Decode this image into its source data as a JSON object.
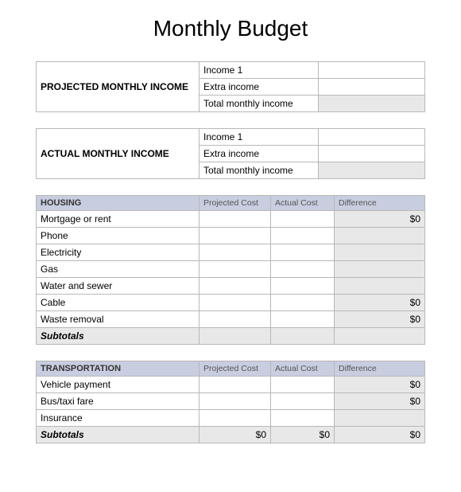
{
  "title": "Monthly Budget",
  "income_sections": [
    {
      "name": "PROJECTED MONTHLY INCOME",
      "rows": [
        {
          "label": "Income 1",
          "value": "",
          "shaded": false
        },
        {
          "label": "Extra income",
          "value": "",
          "shaded": false
        },
        {
          "label": "Total monthly income",
          "value": "",
          "shaded": true
        }
      ]
    },
    {
      "name": "ACTUAL MONTHLY INCOME",
      "rows": [
        {
          "label": "Income 1",
          "value": "",
          "shaded": false
        },
        {
          "label": "Extra income",
          "value": "",
          "shaded": false
        },
        {
          "label": "Total monthly income",
          "value": "",
          "shaded": true
        }
      ]
    }
  ],
  "col_headers": {
    "projected": "Projected Cost",
    "actual": "Actual Cost",
    "difference": "Difference"
  },
  "categories": [
    {
      "name": "HOUSING",
      "rows": [
        {
          "item": "Mortgage or rent",
          "projected": "",
          "actual": "",
          "difference": "$0"
        },
        {
          "item": "Phone",
          "projected": "",
          "actual": "",
          "difference": ""
        },
        {
          "item": "Electricity",
          "projected": "",
          "actual": "",
          "difference": ""
        },
        {
          "item": "Gas",
          "projected": "",
          "actual": "",
          "difference": ""
        },
        {
          "item": "Water and sewer",
          "projected": "",
          "actual": "",
          "difference": ""
        },
        {
          "item": "Cable",
          "projected": "",
          "actual": "",
          "difference": "$0"
        },
        {
          "item": "Waste removal",
          "projected": "",
          "actual": "",
          "difference": "$0"
        }
      ],
      "subtotal": {
        "label": "Subtotals",
        "projected": "",
        "actual": "",
        "difference": ""
      }
    },
    {
      "name": "TRANSPORTATION",
      "rows": [
        {
          "item": "Vehicle payment",
          "projected": "",
          "actual": "",
          "difference": "$0"
        },
        {
          "item": "Bus/taxi fare",
          "projected": "",
          "actual": "",
          "difference": "$0"
        },
        {
          "item": "Insurance",
          "projected": "",
          "actual": "",
          "difference": ""
        }
      ],
      "subtotal": {
        "label": "Subtotals",
        "projected": "$0",
        "actual": "$0",
        "difference": "$0"
      }
    }
  ]
}
